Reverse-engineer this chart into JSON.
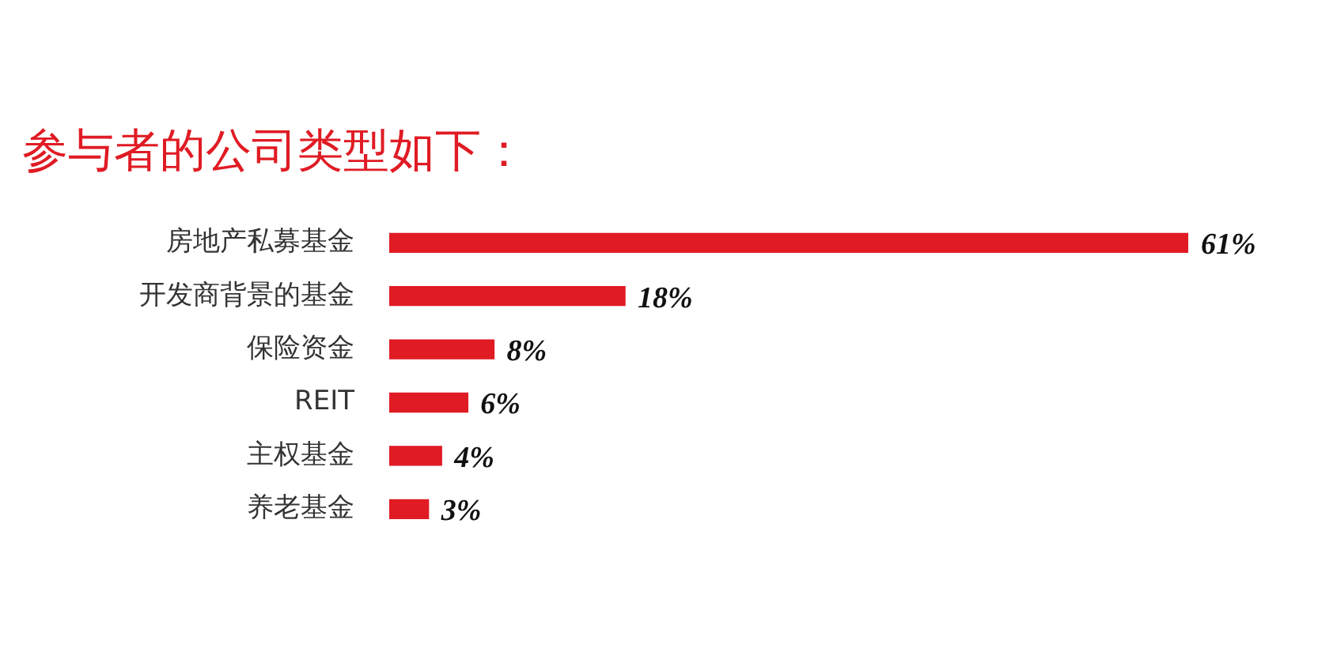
{
  "chart_data": {
    "type": "bar",
    "orientation": "horizontal",
    "title": "参与者的公司类型如下：",
    "categories": [
      "房地产私募基金",
      "开发商背景的基金",
      "保险资金",
      "REIT",
      "主权基金",
      "养老基金"
    ],
    "values": [
      61,
      18,
      8,
      6,
      4,
      3
    ],
    "color": "#e01b24",
    "data_labels": true,
    "value_labels": [
      "61%",
      "18%",
      "8%",
      "6%",
      "4%",
      "3%"
    ],
    "legend": false
  }
}
